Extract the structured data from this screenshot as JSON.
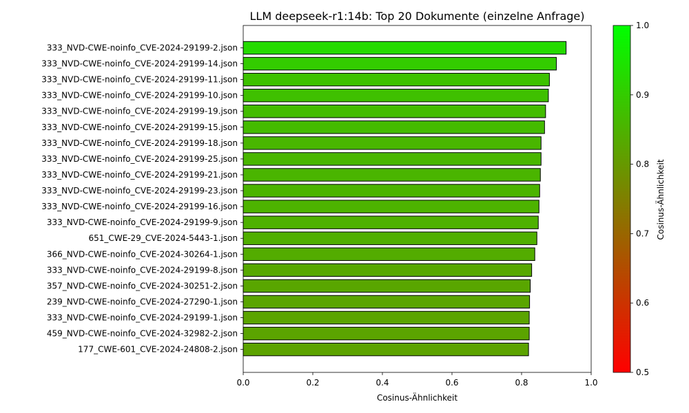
{
  "chart_data": {
    "type": "bar",
    "orientation": "horizontal",
    "title": "LLM deepseek-r1:14b: Top 20 Dokumente (einzelne Anfrage)",
    "xlabel": "Cosinus-Ähnlichkeit",
    "ylabel": "",
    "xlim": [
      0.0,
      1.0
    ],
    "xticks": [
      "0.0",
      "0.2",
      "0.4",
      "0.6",
      "0.8",
      "1.0"
    ],
    "grid": false,
    "categories": [
      "333_NVD-CWE-noinfo_CVE-2024-29199-2.json",
      "333_NVD-CWE-noinfo_CVE-2024-29199-14.json",
      "333_NVD-CWE-noinfo_CVE-2024-29199-11.json",
      "333_NVD-CWE-noinfo_CVE-2024-29199-10.json",
      "333_NVD-CWE-noinfo_CVE-2024-29199-19.json",
      "333_NVD-CWE-noinfo_CVE-2024-29199-15.json",
      "333_NVD-CWE-noinfo_CVE-2024-29199-18.json",
      "333_NVD-CWE-noinfo_CVE-2024-29199-25.json",
      "333_NVD-CWE-noinfo_CVE-2024-29199-21.json",
      "333_NVD-CWE-noinfo_CVE-2024-29199-23.json",
      "333_NVD-CWE-noinfo_CVE-2024-29199-16.json",
      "333_NVD-CWE-noinfo_CVE-2024-29199-9.json",
      "651_CWE-29_CVE-2024-5443-1.json",
      "366_NVD-CWE-noinfo_CVE-2024-30264-1.json",
      "333_NVD-CWE-noinfo_CVE-2024-29199-8.json",
      "357_NVD-CWE-noinfo_CVE-2024-30251-2.json",
      "239_NVD-CWE-noinfo_CVE-2024-27290-1.json",
      "333_NVD-CWE-noinfo_CVE-2024-29199-1.json",
      "459_NVD-CWE-noinfo_CVE-2024-32982-2.json",
      "177_CWE-601_CVE-2024-24808-2.json"
    ],
    "values": [
      0.928,
      0.9,
      0.88,
      0.877,
      0.869,
      0.866,
      0.856,
      0.856,
      0.854,
      0.852,
      0.85,
      0.848,
      0.844,
      0.838,
      0.829,
      0.825,
      0.823,
      0.822,
      0.822,
      0.82
    ],
    "colorbar": {
      "label": "Cosinus-Ähnlichkeit",
      "range": [
        0.5,
        1.0
      ],
      "ticks": [
        "0.5",
        "0.6",
        "0.7",
        "0.8",
        "0.9",
        "1.0"
      ],
      "low_color": "#ff0000",
      "high_color": "#00ff00"
    },
    "bar_edge_color": "#000000"
  }
}
